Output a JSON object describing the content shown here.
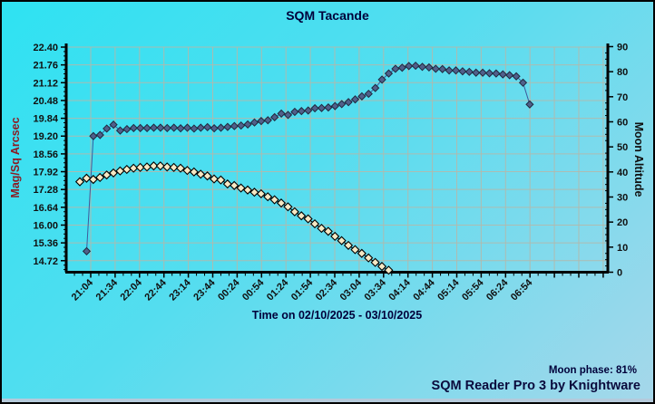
{
  "window": {
    "title": "SQM Tacande"
  },
  "footer": {
    "moon_phase": "Moon phase: 81%",
    "brand": "SQM Reader Pro 3 by Knightware"
  },
  "colors": {
    "background_top_left": "#2ee2f2",
    "background_bottom_right": "#a6d7ea",
    "grid": "#b4b8ab",
    "axis": "#000000",
    "left_axis_label": "#8b1c24",
    "text_navy": "#00003a",
    "sqm_marker_fill": "#50608a",
    "sqm_marker_stroke": "#20283f",
    "sqm_line": "#3f5a9a",
    "moon_marker_fill": "#f6e8c4",
    "moon_marker_stroke": "#000000"
  },
  "chart_data": {
    "type": "line",
    "title": "SQM Tacande",
    "xlabel": "Time on 02/10/2025 - 03/10/2025",
    "x_tick_labels": [
      "21:04",
      "21:34",
      "22:04",
      "22:44",
      "23:14",
      "23:44",
      "00:24",
      "00:54",
      "01:24",
      "01:54",
      "02:34",
      "03:04",
      "03:34",
      "04:14",
      "04:44",
      "05:14",
      "05:54",
      "06:24",
      "06:54"
    ],
    "grid": true,
    "legend": false,
    "left_axis": {
      "label": "Mag/Sq Arcsec",
      "tick_labels": [
        "22.40",
        "21.76",
        "21.12",
        "20.48",
        "19.84",
        "19.20",
        "18.56",
        "17.92",
        "17.28",
        "16.64",
        "16.00",
        "15.36",
        "14.72"
      ],
      "ticks": [
        22.4,
        21.76,
        21.12,
        20.48,
        19.84,
        19.2,
        18.56,
        17.92,
        17.28,
        16.64,
        16.0,
        15.36,
        14.72
      ],
      "range_top": 22.4,
      "grid_step": 0.64
    },
    "right_axis": {
      "label": "Moon Altitude",
      "tick_labels": [
        "90",
        "80",
        "70",
        "60",
        "50",
        "40",
        "30",
        "20",
        "10",
        "0"
      ],
      "ticks": [
        90,
        80,
        70,
        60,
        50,
        40,
        30,
        20,
        10,
        0
      ],
      "range": [
        0,
        90
      ]
    },
    "series": [
      {
        "name": "sqm_mag_sq_arcsec",
        "axis": "left",
        "marker": "diamond",
        "values": [
          15.06,
          19.2,
          19.24,
          19.47,
          19.61,
          19.4,
          19.45,
          19.49,
          19.49,
          19.49,
          19.5,
          19.5,
          19.49,
          19.5,
          19.48,
          19.5,
          19.47,
          19.5,
          19.52,
          19.48,
          19.5,
          19.53,
          19.56,
          19.58,
          19.62,
          19.69,
          19.74,
          19.77,
          19.88,
          20.01,
          19.96,
          20.07,
          20.1,
          20.12,
          20.2,
          20.21,
          20.23,
          20.28,
          20.35,
          20.42,
          20.52,
          20.63,
          20.72,
          20.93,
          21.23,
          21.45,
          21.62,
          21.66,
          21.72,
          21.73,
          21.69,
          21.67,
          21.62,
          21.61,
          21.56,
          21.56,
          21.53,
          21.51,
          21.48,
          21.48,
          21.46,
          21.45,
          21.42,
          21.39,
          21.35,
          21.12,
          20.34
        ]
      },
      {
        "name": "moon_altitude_deg",
        "axis": "right",
        "marker": "diamond",
        "values": [
          36.1,
          37.5,
          37.0,
          37.8,
          38.8,
          39.6,
          40.4,
          41.0,
          41.5,
          41.8,
          42.0,
          42.4,
          42.4,
          42.0,
          41.8,
          41.5,
          40.6,
          40.0,
          39.1,
          38.4,
          37.2,
          36.8,
          35.2,
          34.6,
          33.6,
          32.8,
          31.9,
          31.3,
          30.1,
          28.9,
          27.6,
          26.1,
          24.1,
          22.5,
          21.3,
          19.3,
          17.5,
          16.3,
          14.3,
          12.6,
          10.7,
          9.0,
          7.5,
          5.7,
          3.9,
          2.3,
          0.8
        ]
      }
    ]
  }
}
